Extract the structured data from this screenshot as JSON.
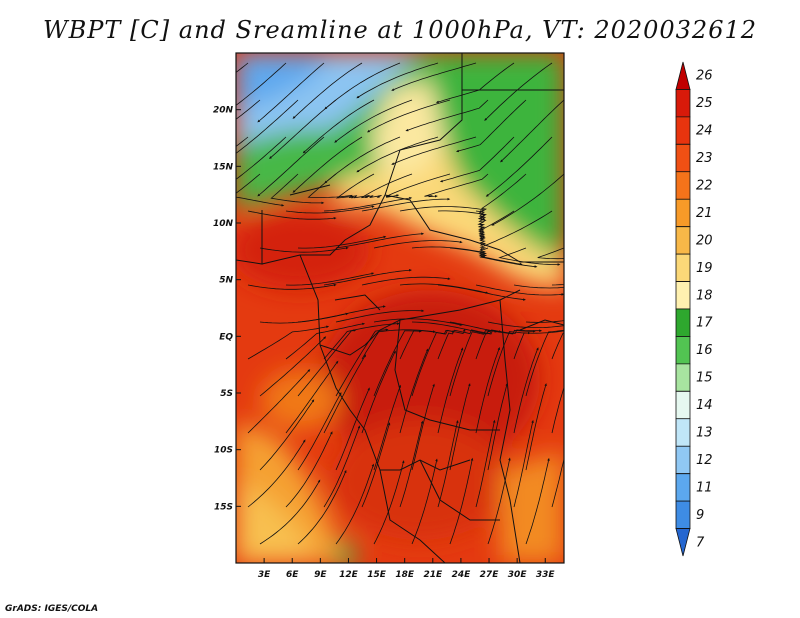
{
  "title": "WBPT [C] and Sreamline at 1000hPa, VT: 2020032612",
  "credit": "GrADS: IGES/COLA",
  "map": {
    "lon_range": [
      0,
      35
    ],
    "lat_range": [
      -20,
      25
    ],
    "lon_ticks": [
      "3E",
      "6E",
      "9E",
      "12E",
      "15E",
      "18E",
      "21E",
      "24E",
      "27E",
      "30E",
      "33E"
    ],
    "lon_tick_values": [
      3,
      6,
      9,
      12,
      15,
      18,
      21,
      24,
      27,
      30,
      33
    ],
    "lat_ticks": [
      "20N",
      "15N",
      "10N",
      "5N",
      "EQ",
      "5S",
      "10S",
      "15S"
    ],
    "lat_tick_values": [
      20,
      15,
      10,
      5,
      0,
      -5,
      -10,
      -15
    ]
  },
  "colorbar": {
    "levels": [
      "26",
      "25",
      "24",
      "23",
      "22",
      "21",
      "20",
      "19",
      "18",
      "17",
      "16",
      "15",
      "14",
      "13",
      "12",
      "11",
      "9",
      "7"
    ],
    "colors": [
      "#c00000",
      "#d81a0a",
      "#e8340e",
      "#f05014",
      "#f5731a",
      "#f79a28",
      "#f8b848",
      "#fbd878",
      "#fff1b0",
      "#2ea82e",
      "#52c452",
      "#a8e4a0",
      "#e6f8f0",
      "#c0e6f8",
      "#90c8f4",
      "#5ca8ee",
      "#3e8ce4",
      "#2466d0"
    ]
  }
}
